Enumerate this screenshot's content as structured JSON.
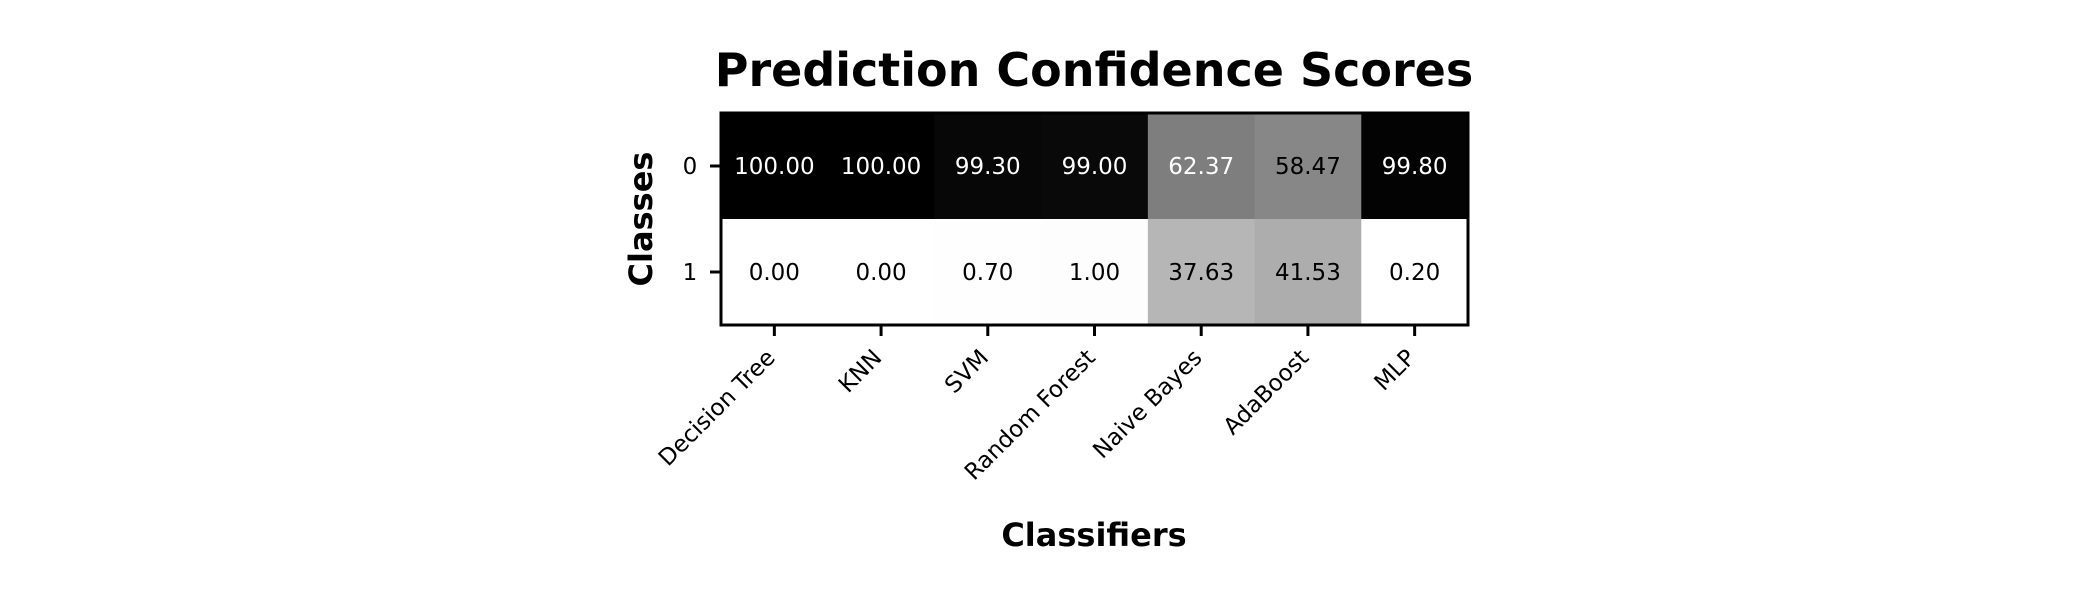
{
  "chart_data": {
    "type": "heatmap",
    "title": "Prediction Confidence Scores",
    "xlabel": "Classifiers",
    "ylabel": "Classes",
    "x_categories": [
      "Decision Tree",
      "KNN",
      "SVM",
      "Random Forest",
      "Naive Bayes",
      "AdaBoost",
      "MLP"
    ],
    "y_categories": [
      "0",
      "1"
    ],
    "values": [
      [
        100.0,
        100.0,
        99.3,
        99.0,
        62.37,
        58.47,
        99.8
      ],
      [
        0.0,
        0.0,
        0.7,
        1.0,
        37.63,
        41.53,
        0.2
      ]
    ],
    "value_format": "2 decimals",
    "colormap": "Greys",
    "vmin": 0,
    "vmax": 100,
    "colorbar": false,
    "grid": false
  }
}
